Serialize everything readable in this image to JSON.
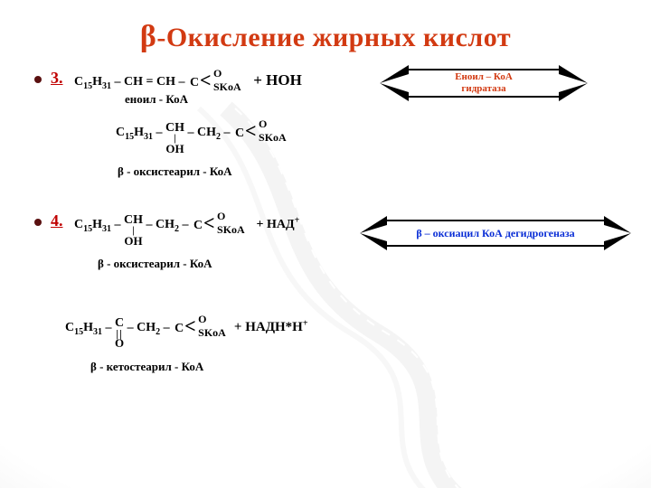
{
  "title": {
    "beta": "β",
    "rest": "-Окисление жирных кислот"
  },
  "steps": {
    "s3": {
      "num": "3."
    },
    "s4": {
      "num": "4."
    }
  },
  "formulas": {
    "f3a_c15": "C₁₅H₃₁",
    "f3a_mid": " –  CH = CH –  ",
    "f3a_plus": " + HOH",
    "f3a_name": "еноил - КоА",
    "f3b_c15": "C₁₅H₃₁",
    "f3b_sep1": " –  ",
    "f3b_ch": "CH",
    "f3b_bar": "|",
    "f3b_oh": "OH",
    "f3b_sep2": "  – CH₂ –  ",
    "f3b_name": "β - оксистеарил - КоА",
    "f4a_c15": "C₁₅H₃₁",
    "f4a_sep1": " –  ",
    "f4a_ch": "CH",
    "f4a_bar": "|",
    "f4a_oh": "OH",
    "f4a_sep2": "  – CH₂ –  ",
    "f4a_nad": " +  НАД",
    "f4a_name": "β - оксистеарил - КоА",
    "f4b_c15": "C₁₅H₃₁",
    "f4b_sep1": " –  ",
    "f4b_c": "C",
    "f4b_dbond": "||",
    "f4b_o": "O",
    "f4b_sep2": "  – CH₂ –  ",
    "f4b_nadhh": " + НАДН*Н",
    "f4b_name": "β - кетостеарил - КоА"
  },
  "branch": {
    "upper": "O",
    "lower": "SKoA"
  },
  "enzymes": {
    "e1": "Еноил – КоА\nгидратаза",
    "e2": "β – оксиацил КоА дегидрогеназа"
  },
  "colors": {
    "title": "#d23a12",
    "stepnum": "#c00000",
    "enzyme1_text": "#d23a12",
    "enzyme2_text": "#0a2ed6",
    "black": "#000000"
  }
}
